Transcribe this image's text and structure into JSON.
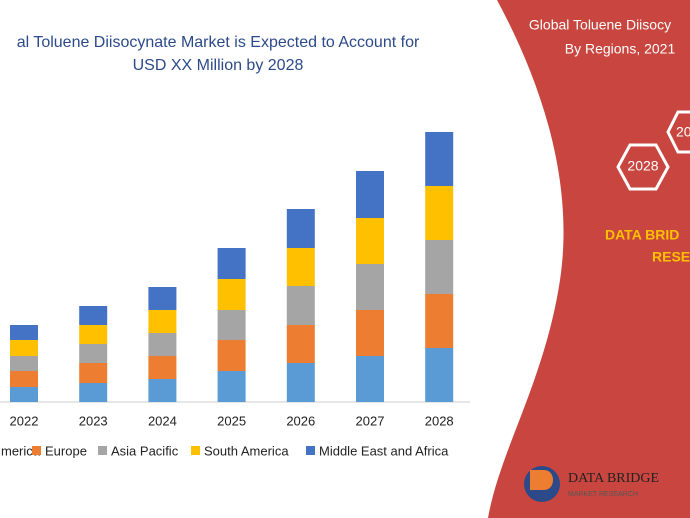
{
  "chart_data": {
    "type": "bar",
    "stacked": true,
    "title_lines": [
      "al Toluene Diisocynate Market is Expected to Account for",
      "USD XX Million by 2028"
    ],
    "categories": [
      "2022",
      "2023",
      "2024",
      "2025",
      "2026",
      "2027",
      "2028"
    ],
    "series": [
      {
        "name": "merica",
        "color": "#5b9bd5",
        "values": [
          15,
          19,
          23,
          31,
          39,
          46,
          54
        ]
      },
      {
        "name": "Europe",
        "color": "#ed7d31",
        "values": [
          16,
          20,
          23,
          31,
          38,
          46,
          54
        ]
      },
      {
        "name": "Asia Pacific",
        "color": "#a5a5a5",
        "values": [
          15,
          19,
          23,
          30,
          39,
          46,
          54
        ]
      },
      {
        "name": "South America",
        "color": "#ffc000",
        "values": [
          16,
          19,
          23,
          31,
          38,
          46,
          54
        ]
      },
      {
        "name": "Middle East and Africa",
        "color": "#4472c4",
        "values": [
          15,
          19,
          23,
          31,
          39,
          47,
          54
        ]
      }
    ],
    "ylim": [
      0,
      280
    ]
  },
  "panel": {
    "heading_lines": [
      "Global Toluene Diisocy",
      "By Regions, 2021"
    ],
    "hexagons": [
      "2028",
      "20"
    ],
    "brand_lines": [
      "DATA BRID",
      "RESE"
    ],
    "logo_lines": [
      "DATA BRIDGE",
      "MARKET RESEARCH"
    ]
  }
}
